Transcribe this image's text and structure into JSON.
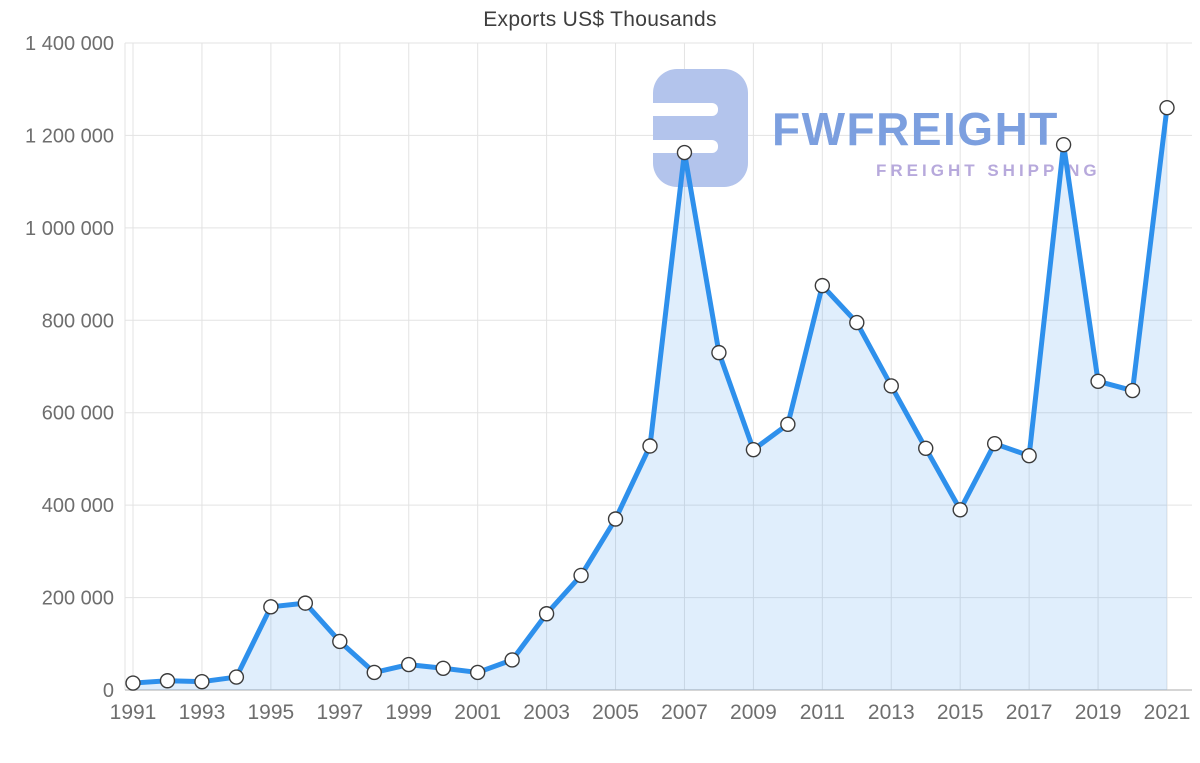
{
  "watermark": {
    "brand": "FWFREIGHT",
    "tagline": "FREIGHT SHIPPING"
  },
  "chart_data": {
    "type": "area",
    "title": "Exports US$ Thousands",
    "xlabel": "",
    "ylabel": "",
    "x": [
      1991,
      1992,
      1993,
      1994,
      1995,
      1996,
      1997,
      1998,
      1999,
      2000,
      2001,
      2002,
      2003,
      2004,
      2005,
      2006,
      2007,
      2008,
      2009,
      2010,
      2011,
      2012,
      2013,
      2014,
      2015,
      2016,
      2017,
      2018,
      2019,
      2020,
      2021
    ],
    "series": [
      {
        "name": "Exports US$ Thousands",
        "values": [
          15000,
          20000,
          18000,
          28000,
          180000,
          188000,
          105000,
          38000,
          55000,
          47000,
          38000,
          65000,
          165000,
          248000,
          370000,
          528000,
          1163000,
          730000,
          520000,
          575000,
          875000,
          795000,
          658000,
          523000,
          390000,
          533000,
          507000,
          1180000,
          668000,
          648000,
          1260000
        ]
      }
    ],
    "ylim": [
      0,
      1400000
    ],
    "ytick_values": [
      0,
      200000,
      400000,
      600000,
      800000,
      1000000,
      1200000,
      1400000
    ],
    "ytick_labels": [
      "0",
      "200 000",
      "400 000",
      "600 000",
      "800 000",
      "1 000 000",
      "1 200 000",
      "1 400 000"
    ],
    "xtick_labels": [
      "1991",
      "1993",
      "1995",
      "1997",
      "1999",
      "2001",
      "2003",
      "2005",
      "2007",
      "2009",
      "2011",
      "2013",
      "2015",
      "2017",
      "2019",
      "2021"
    ],
    "grid": true,
    "legend": "none",
    "colors": {
      "line": "#2e90ec",
      "area_fill": "#2e90ec",
      "area_opacity": "0.15",
      "marker_fill": "#ffffff",
      "marker_stroke": "#3b3b3b",
      "grid": "#e3e3e3",
      "axis_line": "#c7c7c7",
      "tick_text": "#6e6e6e",
      "title_text": "#3e3e3e",
      "watermark_logo": "#b3c4ec",
      "watermark_brand": "#7c9fdf",
      "watermark_tagline": "#b7a9dc"
    }
  }
}
